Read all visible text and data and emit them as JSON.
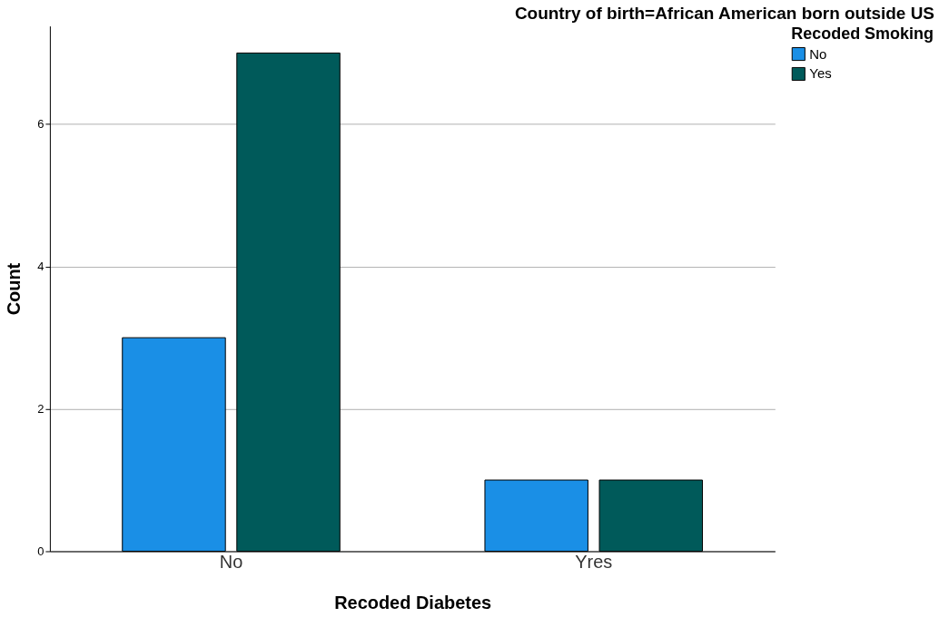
{
  "chart_data": {
    "type": "bar",
    "title": "Country of birth=African American born outside US",
    "xlabel": "Recoded Diabetes",
    "ylabel": "Count",
    "legend_title": "Recoded Smoking",
    "categories": [
      "No",
      "Yres"
    ],
    "series": [
      {
        "name": "No",
        "color": "#1a8fe6",
        "values": [
          3,
          1
        ]
      },
      {
        "name": "Yes",
        "color": "#005a5a",
        "values": [
          7,
          1
        ]
      }
    ],
    "ylim": [
      0,
      7.38
    ],
    "yticks": [
      0,
      2,
      4,
      6
    ],
    "grid": "y",
    "legend": "top right"
  }
}
